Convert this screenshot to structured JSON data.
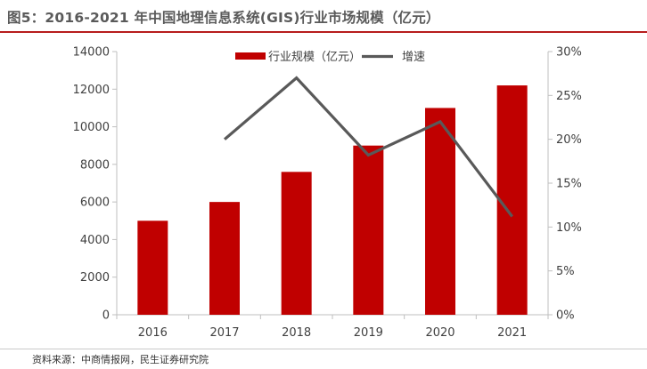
{
  "header": {
    "title": "图5：2016-2021 年中国地理信息系统(GIS)行业市场规模（亿元）"
  },
  "footer": {
    "source": "资料来源：中商情报网，民生证券研究院"
  },
  "chart_data": {
    "type": "bar",
    "title": "图5：2016-2021 年中国地理信息系统(GIS)行业市场规模（亿元）",
    "categories": [
      "2016",
      "2017",
      "2018",
      "2019",
      "2020",
      "2021"
    ],
    "series": [
      {
        "name": "行业规模（亿元）",
        "type": "bar",
        "axis": "left",
        "values": [
          5000,
          6000,
          7600,
          9000,
          11000,
          12200
        ]
      },
      {
        "name": "增速",
        "type": "line",
        "axis": "right",
        "values": [
          null,
          0.2,
          0.27,
          0.182,
          0.22,
          0.112
        ]
      }
    ],
    "y_left": {
      "min": 0,
      "max": 14000,
      "ticks": [
        0,
        2000,
        4000,
        6000,
        8000,
        10000,
        12000,
        14000
      ]
    },
    "y_right": {
      "min": 0,
      "max": 0.3,
      "ticks": [
        0,
        0.05,
        0.1,
        0.15,
        0.2,
        0.25,
        0.3
      ],
      "tick_labels": [
        "0%",
        "5%",
        "10%",
        "15%",
        "20%",
        "25%",
        "30%"
      ]
    },
    "xlabel": "",
    "ylabel": "",
    "legend_position": "top-center",
    "colors": {
      "bar": "#c00000",
      "line": "#595959",
      "axis": "#bfbfbf",
      "text": "#404040"
    }
  }
}
